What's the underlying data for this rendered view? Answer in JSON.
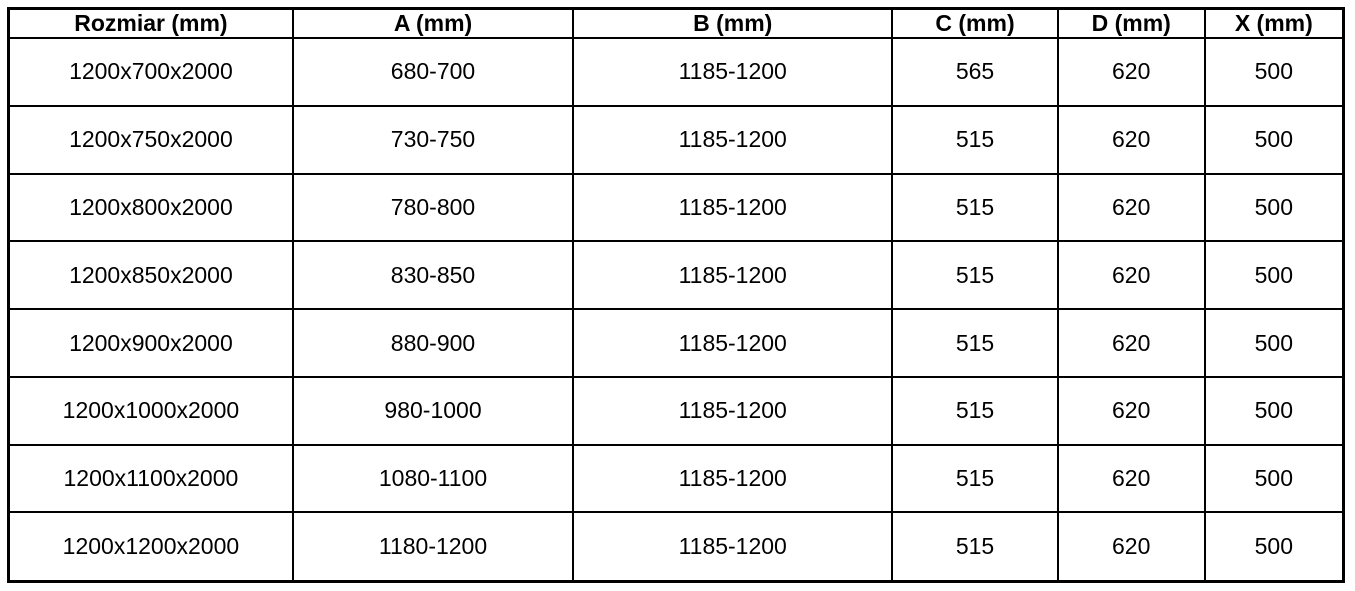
{
  "table": {
    "headers": [
      "Rozmiar (mm)",
      "A (mm)",
      "B (mm)",
      "C (mm)",
      "D (mm)",
      "X (mm)"
    ],
    "rows": [
      [
        "1200x700x2000",
        "680-700",
        "1185-1200",
        "565",
        "620",
        "500"
      ],
      [
        "1200x750x2000",
        "730-750",
        "1185-1200",
        "515",
        "620",
        "500"
      ],
      [
        "1200x800x2000",
        "780-800",
        "1185-1200",
        "515",
        "620",
        "500"
      ],
      [
        "1200x850x2000",
        "830-850",
        "1185-1200",
        "515",
        "620",
        "500"
      ],
      [
        "1200x900x2000",
        "880-900",
        "1185-1200",
        "515",
        "620",
        "500"
      ],
      [
        "1200x1000x2000",
        "980-1000",
        "1185-1200",
        "515",
        "620",
        "500"
      ],
      [
        "1200x1100x2000",
        "1080-1100",
        "1185-1200",
        "515",
        "620",
        "500"
      ],
      [
        "1200x1200x2000",
        "1180-1200",
        "1185-1200",
        "515",
        "620",
        "500"
      ]
    ],
    "colors": {
      "border": "#000000",
      "text": "#000000",
      "background": "#ffffff"
    }
  }
}
